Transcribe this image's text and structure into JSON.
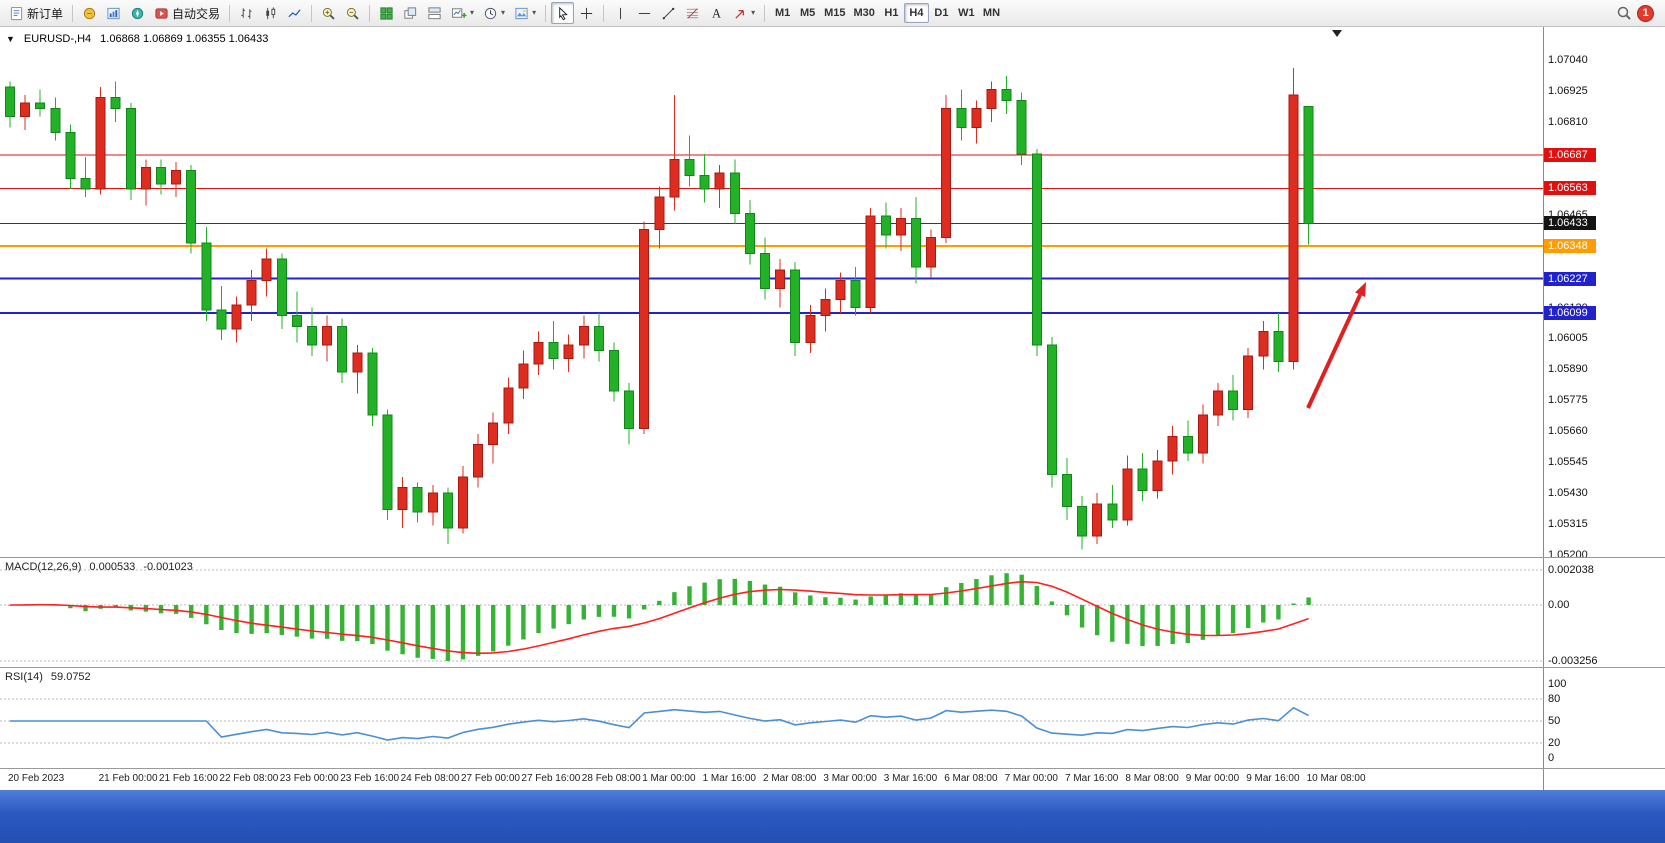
{
  "toolbar": {
    "new_order_label": "新订单",
    "autotrading_label": "自动交易",
    "timeframes": [
      "M1",
      "M5",
      "M15",
      "M30",
      "H1",
      "H4",
      "D1",
      "W1",
      "MN"
    ],
    "active_timeframe": "H4",
    "notification_count": "1"
  },
  "chart": {
    "title": "EURUSD-,H4",
    "ohlc": "1.06868 1.06869 1.06355 1.06433"
  },
  "colors": {
    "up": "#dd2c20",
    "up_border": "#a81a10",
    "down": "#23b227",
    "down_border": "#11851a",
    "macd_hist": "#35b335",
    "macd_signal": "#ff2020",
    "rsi_line": "#4a8fd4",
    "arrow": "#e01f1f"
  },
  "price_axis": {
    "labels": [
      "1.07040",
      "1.06925",
      "1.06810",
      "1.06465",
      "1.06120",
      "1.06005",
      "1.05890",
      "1.05775",
      "1.05660",
      "1.05545",
      "1.05430",
      "1.05315",
      "1.05200"
    ],
    "badges": [
      {
        "text": "1.06687",
        "color": "#e01010"
      },
      {
        "text": "1.06563",
        "color": "#e01010"
      },
      {
        "text": "1.06433",
        "color": "#141414"
      },
      {
        "text": "1.06348",
        "color": "#ff9c00"
      },
      {
        "text": "1.06227",
        "color": "#2222cc"
      },
      {
        "text": "1.06099",
        "color": "#2222cc"
      }
    ]
  },
  "hlines": [
    {
      "price": 1.06687,
      "color": "#e01010",
      "width": 1
    },
    {
      "price": 1.06563,
      "color": "#e01010",
      "width": 1
    },
    {
      "price": 1.06433,
      "color": "#3a3a3a",
      "width": 1
    },
    {
      "price": 1.06348,
      "color": "#ff9c00",
      "width": 2
    },
    {
      "price": 1.06227,
      "color": "#2222cc",
      "width": 2
    },
    {
      "price": 1.06099,
      "color": "#2222cc",
      "width": 2
    }
  ],
  "macd": {
    "name": "MACD(12,26,9)",
    "fast": 12,
    "slow": 26,
    "signal_period": 9,
    "value_main": "0.000533",
    "value_signal": "-0.001023",
    "axis_labels": [
      "0.002038",
      "0.00",
      "-0.003256"
    ]
  },
  "rsi": {
    "name": "RSI(14)",
    "period": 14,
    "value": "59.0752",
    "axis_labels": [
      "100",
      "80",
      "50",
      "20",
      "0"
    ],
    "levels": [
      80,
      50,
      20
    ]
  },
  "chart_data": {
    "type": "candlestick",
    "symbol": "EURUSD-",
    "timeframe": "H4",
    "current_ohlc": {
      "open": "1.06868",
      "high": "1.06869",
      "low": "1.06355",
      "close": "1.06433"
    },
    "color_convention": "red = bullish, green = bearish (CN convention)",
    "candles": [
      [
        1.0694,
        1.0696,
        1.0679,
        1.0683
      ],
      [
        1.0683,
        1.0691,
        1.0678,
        1.0688
      ],
      [
        1.0688,
        1.0693,
        1.0683,
        1.0686
      ],
      [
        1.0686,
        1.069,
        1.0674,
        1.0677
      ],
      [
        1.0677,
        1.068,
        1.0656,
        1.066
      ],
      [
        1.066,
        1.0668,
        1.0653,
        1.0656
      ],
      [
        1.0656,
        1.0694,
        1.0654,
        1.069
      ],
      [
        1.069,
        1.0696,
        1.0681,
        1.0686
      ],
      [
        1.0686,
        1.0688,
        1.0652,
        1.0656
      ],
      [
        1.0656,
        1.0667,
        1.065,
        1.0664
      ],
      [
        1.0664,
        1.0667,
        1.0654,
        1.0658
      ],
      [
        1.0658,
        1.0666,
        1.0653,
        1.0663
      ],
      [
        1.0663,
        1.0665,
        1.0632,
        1.0636
      ],
      [
        1.0636,
        1.0642,
        1.0607,
        1.0611
      ],
      [
        1.0611,
        1.062,
        1.06,
        1.0604
      ],
      [
        1.0604,
        1.0616,
        1.0599,
        1.0613
      ],
      [
        1.0613,
        1.0626,
        1.0607,
        1.0622
      ],
      [
        1.0622,
        1.0634,
        1.0616,
        1.063
      ],
      [
        1.063,
        1.0632,
        1.0604,
        1.0609
      ],
      [
        1.0609,
        1.0618,
        1.0599,
        1.0605
      ],
      [
        1.0605,
        1.0612,
        1.0594,
        1.0598
      ],
      [
        1.0598,
        1.0609,
        1.0592,
        1.0605
      ],
      [
        1.0605,
        1.0608,
        1.0584,
        1.0588
      ],
      [
        1.0588,
        1.0598,
        1.058,
        1.0595
      ],
      [
        1.0595,
        1.0597,
        1.0568,
        1.0572
      ],
      [
        1.0572,
        1.0574,
        1.0533,
        1.0537
      ],
      [
        1.0537,
        1.0549,
        1.053,
        1.0545
      ],
      [
        1.0545,
        1.0547,
        1.0532,
        1.0536
      ],
      [
        1.0536,
        1.0546,
        1.0531,
        1.0543
      ],
      [
        1.0543,
        1.0545,
        1.0524,
        1.053
      ],
      [
        1.053,
        1.0553,
        1.0528,
        1.0549
      ],
      [
        1.0549,
        1.0565,
        1.0545,
        1.0561
      ],
      [
        1.0561,
        1.0573,
        1.0554,
        1.0569
      ],
      [
        1.0569,
        1.0586,
        1.0565,
        1.0582
      ],
      [
        1.0582,
        1.0596,
        1.0578,
        1.0591
      ],
      [
        1.0591,
        1.0603,
        1.0587,
        1.0599
      ],
      [
        1.0599,
        1.0607,
        1.0589,
        1.0593
      ],
      [
        1.0593,
        1.0602,
        1.0588,
        1.0598
      ],
      [
        1.0598,
        1.0609,
        1.0593,
        1.0605
      ],
      [
        1.0605,
        1.061,
        1.0592,
        1.0596
      ],
      [
        1.0596,
        1.0599,
        1.0577,
        1.0581
      ],
      [
        1.0581,
        1.0584,
        1.0561,
        1.0567
      ],
      [
        1.0567,
        1.0644,
        1.0565,
        1.0641
      ],
      [
        1.0641,
        1.0657,
        1.0634,
        1.0653
      ],
      [
        1.0653,
        1.0691,
        1.0648,
        1.0667
      ],
      [
        1.0667,
        1.0676,
        1.0657,
        1.0661
      ],
      [
        1.0661,
        1.0669,
        1.0651,
        1.0656
      ],
      [
        1.0656,
        1.0665,
        1.0649,
        1.0662
      ],
      [
        1.0662,
        1.0667,
        1.0643,
        1.0647
      ],
      [
        1.0647,
        1.0652,
        1.0628,
        1.0632
      ],
      [
        1.0632,
        1.0638,
        1.0615,
        1.0619
      ],
      [
        1.0619,
        1.063,
        1.0612,
        1.0626
      ],
      [
        1.0626,
        1.0629,
        1.0594,
        1.0599
      ],
      [
        1.0599,
        1.0613,
        1.0595,
        1.0609
      ],
      [
        1.0609,
        1.0619,
        1.0603,
        1.0615
      ],
      [
        1.0615,
        1.0625,
        1.061,
        1.0622
      ],
      [
        1.0622,
        1.0627,
        1.0609,
        1.0612
      ],
      [
        1.0612,
        1.0649,
        1.061,
        1.0646
      ],
      [
        1.0646,
        1.0651,
        1.0634,
        1.0639
      ],
      [
        1.0639,
        1.0649,
        1.0633,
        1.0645
      ],
      [
        1.0645,
        1.0653,
        1.0621,
        1.0627
      ],
      [
        1.0627,
        1.0641,
        1.0623,
        1.0638
      ],
      [
        1.0638,
        1.0691,
        1.0636,
        1.0686
      ],
      [
        1.0686,
        1.0693,
        1.0674,
        1.0679
      ],
      [
        1.0679,
        1.0689,
        1.0673,
        1.0686
      ],
      [
        1.0686,
        1.0696,
        1.0681,
        1.0693
      ],
      [
        1.0693,
        1.0698,
        1.0684,
        1.0689
      ],
      [
        1.0689,
        1.0692,
        1.0665,
        1.0669
      ],
      [
        1.0669,
        1.0671,
        1.0594,
        1.0598
      ],
      [
        1.0598,
        1.0601,
        1.0545,
        1.055
      ],
      [
        1.055,
        1.0556,
        1.0533,
        1.0538
      ],
      [
        1.0538,
        1.0542,
        1.0522,
        1.0527
      ],
      [
        1.0527,
        1.0543,
        1.0524,
        1.0539
      ],
      [
        1.0539,
        1.0546,
        1.053,
        1.0533
      ],
      [
        1.0533,
        1.0557,
        1.0531,
        1.0552
      ],
      [
        1.0552,
        1.0558,
        1.054,
        1.0544
      ],
      [
        1.0544,
        1.0559,
        1.0541,
        1.0555
      ],
      [
        1.0555,
        1.0568,
        1.055,
        1.0564
      ],
      [
        1.0564,
        1.057,
        1.0555,
        1.0558
      ],
      [
        1.0558,
        1.0576,
        1.0554,
        1.0572
      ],
      [
        1.0572,
        1.0584,
        1.0568,
        1.0581
      ],
      [
        1.0581,
        1.0587,
        1.057,
        1.0574
      ],
      [
        1.0574,
        1.0597,
        1.0571,
        1.0594
      ],
      [
        1.0594,
        1.0607,
        1.0589,
        1.0603
      ],
      [
        1.0603,
        1.061,
        1.0588,
        1.0592
      ],
      [
        1.0592,
        1.0701,
        1.0589,
        1.0691
      ],
      [
        1.06868,
        1.06869,
        1.06355,
        1.06433
      ]
    ],
    "time_labels": [
      {
        "i": 0,
        "t": "20 Feb 2023"
      },
      {
        "i": 6,
        "t": "21 Feb 00:00"
      },
      {
        "i": 10,
        "t": "21 Feb 16:00"
      },
      {
        "i": 14,
        "t": "22 Feb 08:00"
      },
      {
        "i": 18,
        "t": "23 Feb 00:00"
      },
      {
        "i": 22,
        "t": "23 Feb 16:00"
      },
      {
        "i": 26,
        "t": "24 Feb 08:00"
      },
      {
        "i": 30,
        "t": "27 Feb 00:00"
      },
      {
        "i": 34,
        "t": "27 Feb 16:00"
      },
      {
        "i": 38,
        "t": "28 Feb 08:00"
      },
      {
        "i": 42,
        "t": "1 Mar 00:00"
      },
      {
        "i": 46,
        "t": "1 Mar 16:00"
      },
      {
        "i": 50,
        "t": "2 Mar 08:00"
      },
      {
        "i": 54,
        "t": "3 Mar 00:00"
      },
      {
        "i": 58,
        "t": "3 Mar 16:00"
      },
      {
        "i": 62,
        "t": "6 Mar 08:00"
      },
      {
        "i": 66,
        "t": "7 Mar 00:00"
      },
      {
        "i": 70,
        "t": "7 Mar 16:00"
      },
      {
        "i": 74,
        "t": "8 Mar 08:00"
      },
      {
        "i": 78,
        "t": "9 Mar 00:00"
      },
      {
        "i": 82,
        "t": "9 Mar 16:00"
      },
      {
        "i": 86,
        "t": "10 Mar 08:00"
      }
    ],
    "annotations": [
      {
        "type": "arrow",
        "color": "#e01f1f",
        "from": [
          1308,
          381
        ],
        "to": [
          1366,
          255
        ]
      }
    ]
  }
}
